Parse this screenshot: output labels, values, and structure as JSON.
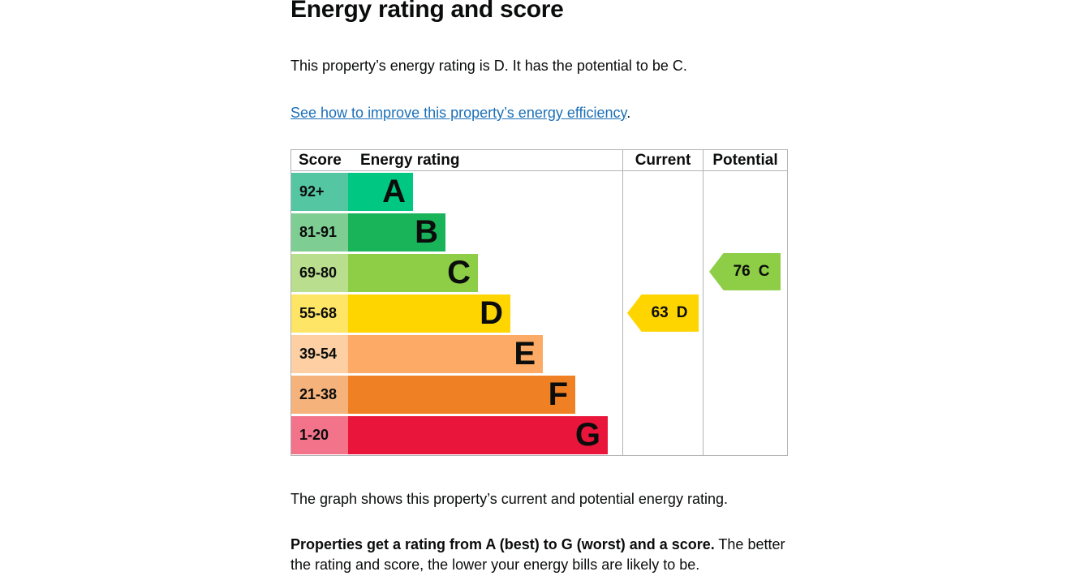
{
  "page": {
    "title": "Energy rating and score",
    "intro": "This property’s energy rating is D. It has the potential to be C.",
    "improve_link": "See how to improve this property’s energy efficiency",
    "improve_suffix": ".",
    "graph_caption": "The graph shows this property’s current and potential energy rating.",
    "rating_note_bold": "Properties get a rating from A (best) to G (worst) and a score.",
    "rating_note_rest": " The better the rating and score, the lower your energy bills are likely to be."
  },
  "chart_data": {
    "type": "bar",
    "title": "Energy rating and score",
    "columns": {
      "score": "Score",
      "rating": "Energy rating",
      "current": "Current",
      "potential": "Potential"
    },
    "bands": [
      {
        "score": "92+",
        "letter": "A",
        "color": "#00c781",
        "score_tint": "#55c6a2"
      },
      {
        "score": "81-91",
        "letter": "B",
        "color": "#19b459",
        "score_tint": "#7ecd92"
      },
      {
        "score": "69-80",
        "letter": "C",
        "color": "#8dce46",
        "score_tint": "#b9de8e"
      },
      {
        "score": "55-68",
        "letter": "D",
        "color": "#ffd500",
        "score_tint": "#ffe566"
      },
      {
        "score": "39-54",
        "letter": "E",
        "color": "#fcaa65",
        "score_tint": "#fdcfa3"
      },
      {
        "score": "21-38",
        "letter": "F",
        "color": "#ef8023",
        "score_tint": "#f5b27b"
      },
      {
        "score": "1-20",
        "letter": "G",
        "color": "#e9153b",
        "score_tint": "#f2738a"
      }
    ],
    "current": {
      "value": "63",
      "letter": "D",
      "color": "#ffd500",
      "band": "55-68"
    },
    "potential": {
      "value": "76",
      "letter": "C",
      "color": "#8dce46",
      "band": "69-80"
    }
  }
}
